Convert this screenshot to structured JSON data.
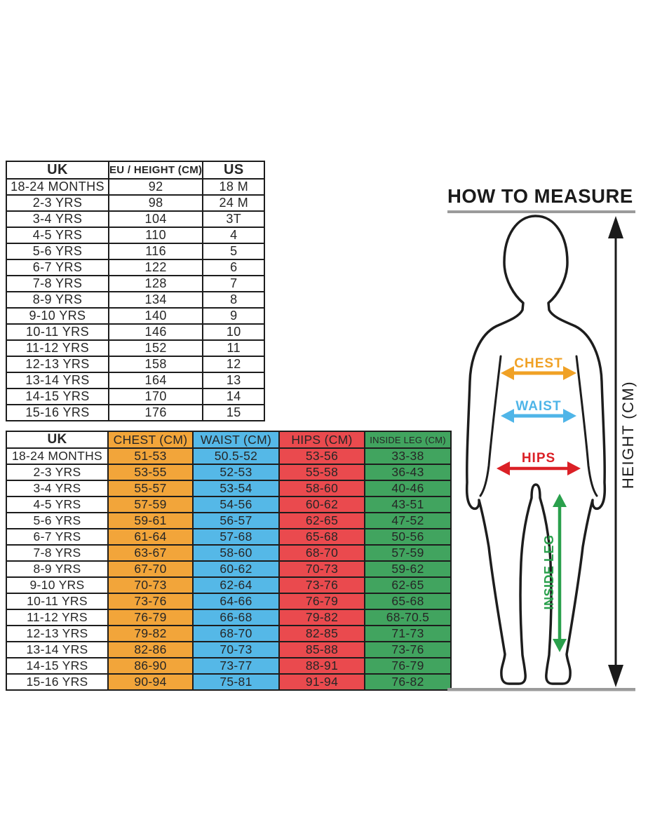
{
  "page": {
    "background": "#ffffff"
  },
  "size_conversion_table": {
    "headers": [
      "UK",
      "EU / HEIGHT (CM)",
      "US"
    ],
    "rows": [
      [
        "18-24 MONTHS",
        "92",
        "18 M"
      ],
      [
        "2-3 YRS",
        "98",
        "24 M"
      ],
      [
        "3-4 YRS",
        "104",
        "3T"
      ],
      [
        "4-5 YRS",
        "110",
        "4"
      ],
      [
        "5-6 YRS",
        "116",
        "5"
      ],
      [
        "6-7 YRS",
        "122",
        "6"
      ],
      [
        "7-8 YRS",
        "128",
        "7"
      ],
      [
        "8-9 YRS",
        "134",
        "8"
      ],
      [
        "9-10 YRS",
        "140",
        "9"
      ],
      [
        "10-11 YRS",
        "146",
        "10"
      ],
      [
        "11-12 YRS",
        "152",
        "11"
      ],
      [
        "12-13 YRS",
        "158",
        "12"
      ],
      [
        "13-14 YRS",
        "164",
        "13"
      ],
      [
        "14-15 YRS",
        "170",
        "14"
      ],
      [
        "15-16 YRS",
        "176",
        "15"
      ]
    ]
  },
  "body_measurement_table": {
    "headers": [
      "UK",
      "CHEST (CM)",
      "WAIST (CM)",
      "HIPS (CM)",
      "INSIDE LEG (CM)"
    ],
    "column_colors": [
      "#FFFFFF",
      "#F2A53A",
      "#55B8E7",
      "#EA4A4E",
      "#41A45F"
    ],
    "rows": [
      [
        "18-24 MONTHS",
        "51-53",
        "50.5-52",
        "53-56",
        "33-38"
      ],
      [
        "2-3 YRS",
        "53-55",
        "52-53",
        "55-58",
        "36-43"
      ],
      [
        "3-4 YRS",
        "55-57",
        "53-54",
        "58-60",
        "40-46"
      ],
      [
        "4-5 YRS",
        "57-59",
        "54-56",
        "60-62",
        "43-51"
      ],
      [
        "5-6 YRS",
        "59-61",
        "56-57",
        "62-65",
        "47-52"
      ],
      [
        "6-7 YRS",
        "61-64",
        "57-68",
        "65-68",
        "50-56"
      ],
      [
        "7-8 YRS",
        "63-67",
        "58-60",
        "68-70",
        "57-59"
      ],
      [
        "8-9 YRS",
        "67-70",
        "60-62",
        "70-73",
        "59-62"
      ],
      [
        "9-10 YRS",
        "70-73",
        "62-64",
        "73-76",
        "62-65"
      ],
      [
        "10-11 YRS",
        "73-76",
        "64-66",
        "76-79",
        "65-68"
      ],
      [
        "11-12 YRS",
        "76-79",
        "66-68",
        "79-82",
        "68-70.5"
      ],
      [
        "12-13 YRS",
        "79-82",
        "68-70",
        "82-85",
        "71-73"
      ],
      [
        "13-14 YRS",
        "82-86",
        "70-73",
        "85-88",
        "73-76"
      ],
      [
        "14-15 YRS",
        "86-90",
        "73-77",
        "88-91",
        "76-79"
      ],
      [
        "15-16 YRS",
        "90-94",
        "75-81",
        "91-94",
        "76-82"
      ]
    ]
  },
  "how_to_measure": {
    "title": "HOW TO MEASURE",
    "labels": {
      "chest": "CHEST",
      "waist": "WAIST",
      "hips": "HIPS",
      "inside_leg": "INSIDE LEG",
      "height": "HEIGHT (CM)"
    },
    "colors": {
      "chest": "#F0A125",
      "waist": "#4FB5E8",
      "hips": "#DB2026",
      "inside_leg": "#2AA04C",
      "height_arrow": "#1A1A1A",
      "guide_line": "#9B9B9B"
    }
  }
}
